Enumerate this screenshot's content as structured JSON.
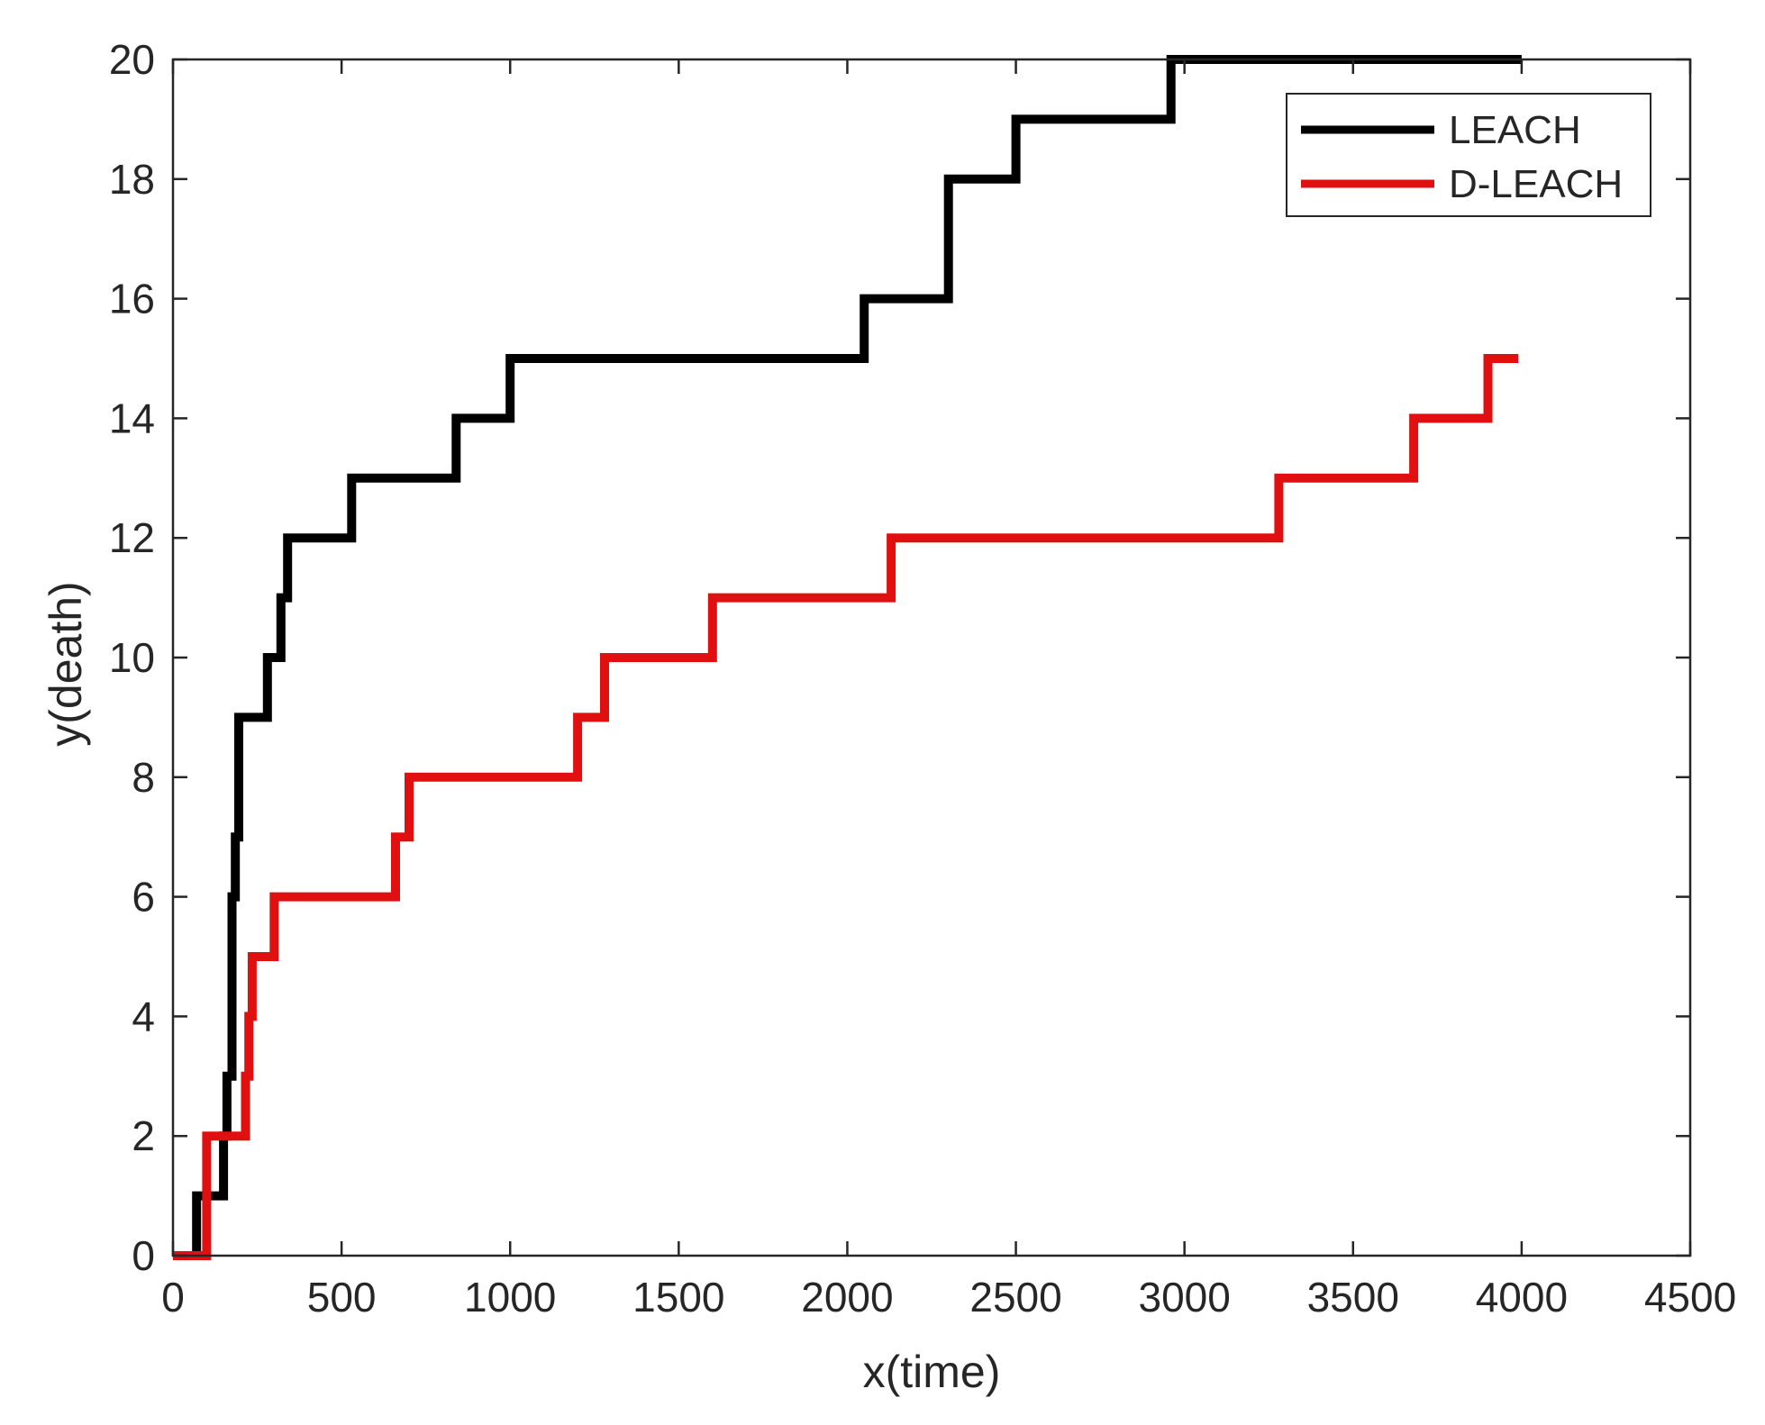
{
  "chart_data": {
    "type": "line",
    "title": "",
    "xlabel": "x(time)",
    "ylabel": "y(death)",
    "xlim": [
      0,
      4500
    ],
    "ylim": [
      0,
      20
    ],
    "xticks": [
      0,
      500,
      1000,
      1500,
      2000,
      2500,
      3000,
      3500,
      4000,
      4500
    ],
    "yticks": [
      0,
      2,
      4,
      6,
      8,
      10,
      12,
      14,
      16,
      18,
      20
    ],
    "grid": false,
    "legend_position": "top-right",
    "series": [
      {
        "name": "LEACH",
        "color": "#000000",
        "step": "post",
        "points": [
          [
            0,
            0
          ],
          [
            70,
            1
          ],
          [
            100,
            1
          ],
          [
            150,
            2
          ],
          [
            160,
            3
          ],
          [
            175,
            6
          ],
          [
            185,
            7
          ],
          [
            195,
            9
          ],
          [
            280,
            10
          ],
          [
            320,
            11
          ],
          [
            340,
            12
          ],
          [
            530,
            13
          ],
          [
            840,
            14
          ],
          [
            1000,
            15
          ],
          [
            2050,
            16
          ],
          [
            2300,
            18
          ],
          [
            2500,
            19
          ],
          [
            2960,
            20
          ],
          [
            4000,
            20
          ]
        ]
      },
      {
        "name": "D-LEACH",
        "color": "#e01010",
        "step": "post",
        "points": [
          [
            0,
            0
          ],
          [
            100,
            2
          ],
          [
            215,
            3
          ],
          [
            225,
            4
          ],
          [
            235,
            5
          ],
          [
            300,
            6
          ],
          [
            660,
            7
          ],
          [
            700,
            8
          ],
          [
            1200,
            9
          ],
          [
            1280,
            10
          ],
          [
            1600,
            11
          ],
          [
            2130,
            12
          ],
          [
            3280,
            13
          ],
          [
            3680,
            14
          ],
          [
            3900,
            15
          ],
          [
            3990,
            15
          ]
        ]
      }
    ]
  }
}
